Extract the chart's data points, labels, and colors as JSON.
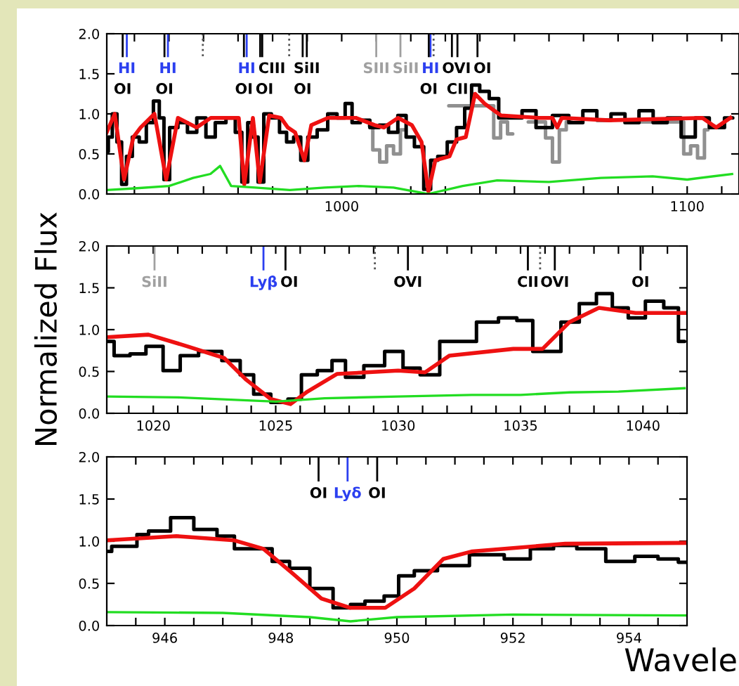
{
  "chart_data": [
    {
      "type": "line",
      "xlim": [
        932,
        1115
      ],
      "ylim": [
        0,
        2
      ],
      "xticks": [
        {
          "value": 940,
          "label": null
        },
        {
          "value": 950,
          "label": null
        },
        {
          "value": 960,
          "label": null
        },
        {
          "value": 970,
          "label": null
        },
        {
          "value": 980,
          "label": null
        },
        {
          "value": 990,
          "label": null
        },
        1000,
        {
          "value": 1010,
          "label": null
        },
        {
          "value": 1020,
          "label": null
        },
        {
          "value": 1030,
          "label": null
        },
        {
          "value": 1040,
          "label": null
        },
        {
          "value": 1050,
          "label": null
        },
        {
          "value": 1060,
          "label": null
        },
        {
          "value": 1070,
          "label": null
        },
        {
          "value": 1080,
          "label": null
        },
        {
          "value": 1090,
          "label": null
        },
        1100,
        {
          "value": 1110,
          "label": null
        }
      ],
      "yticks": [
        {
          "value": 0,
          "label": "0.0"
        },
        {
          "value": 0.5,
          "label": "0.5"
        },
        {
          "value": 1,
          "label": "1.0"
        },
        {
          "value": 1.5,
          "label": "1.5"
        },
        {
          "value": 2,
          "label": "2.0"
        }
      ],
      "grid": false,
      "series": [
        {
          "type": "step",
          "color": "#909090",
          "x": [
            1008,
            1010,
            1012,
            1014,
            1016,
            1018,
            1019,
            1043,
            1045,
            1047,
            1049,
            1050,
            1058,
            1060,
            1062,
            1064,
            1066,
            1067,
            1098,
            1100,
            1102,
            1104,
            1106
          ],
          "values": [
            0.85,
            0.55,
            0.4,
            0.6,
            0.5,
            0.8,
            null,
            1.1,
            0.7,
            0.9,
            0.75,
            null,
            0.9,
            0.7,
            0.4,
            0.8,
            0.9,
            null,
            0.9,
            0.5,
            0.6,
            0.45,
            0.8
          ]
        },
        {
          "type": "step",
          "color": "#000000",
          "x": [
            932,
            932.9,
            934.3,
            935.6,
            937,
            938.4,
            940.4,
            942.4,
            944.5,
            946.5,
            947.9,
            949.2,
            951.2,
            954,
            956.7,
            959.4,
            962,
            964.8,
            968.2,
            970.2,
            972,
            973.6,
            975,
            976.6,
            978.3,
            981,
            983,
            985.1,
            987.1,
            989.2,
            991.2,
            994.6,
            997.3,
            1000,
            1002,
            1004,
            1006.8,
            1009.5,
            1012.2,
            1014.9,
            1017.6,
            1019.7,
            1022.4,
            1025.1,
            1026.4,
            1029.2,
            1031.9,
            1034.6,
            1036.6,
            1038.6,
            1041.3,
            1044.1,
            1046.8,
            1050.2,
            1054.2,
            1058.3,
            1063.7,
            1067.8,
            1071.8,
            1075.9,
            1080,
            1084,
            1088.1,
            1092.2,
            1096.2,
            1100.3,
            1104.4,
            1108.4,
            1113.2
          ],
          "values": [
            0.53,
            0.71,
            1.0,
            0.65,
            0.12,
            0.47,
            0.71,
            0.65,
            0.89,
            1.16,
            0.95,
            0.18,
            0.83,
            0.89,
            0.77,
            0.95,
            0.71,
            0.89,
            0.95,
            0.77,
            0.15,
            0.89,
            0.71,
            0.15,
            1.0,
            0.95,
            0.77,
            0.65,
            0.71,
            0.42,
            0.71,
            0.8,
            1.0,
            0.95,
            1.13,
            0.89,
            0.92,
            0.83,
            0.86,
            0.77,
            0.98,
            0.71,
            0.59,
            0.06,
            0.42,
            0.47,
            0.65,
            0.83,
            1.07,
            1.36,
            1.28,
            1.19,
            0.95,
            0.95,
            1.04,
            0.83,
            0.98,
            0.89,
            1.04,
            0.92,
            1.0,
            0.89,
            1.04,
            0.89,
            0.95,
            0.71,
            0.95,
            0.83,
            0.95
          ]
        },
        {
          "type": "line",
          "color": "#ee1111",
          "x": [
            932,
            934.3,
            937,
            939.7,
            941.8,
            945.8,
            949.2,
            952.6,
            958,
            962.1,
            970.2,
            971.8,
            974.3,
            976.3,
            979,
            982.4,
            984.4,
            986.5,
            989.2,
            991.2,
            996,
            1004.1,
            1009.5,
            1012.2,
            1016.3,
            1020.3,
            1023.1,
            1025.1,
            1027.1,
            1031.2,
            1033.2,
            1035.9,
            1038.6,
            1041.3,
            1046.1,
            1056.9,
            1061,
            1062.4,
            1063.7,
            1077.3,
            1104.4,
            1108.4,
            1112.5
          ],
          "values": [
            0.77,
            1.0,
            0.18,
            0.71,
            0.83,
            1.0,
            0.18,
            0.95,
            0.83,
            0.95,
            0.95,
            0.12,
            0.95,
            0.15,
            0.98,
            0.95,
            0.83,
            0.77,
            0.42,
            0.86,
            0.95,
            0.95,
            0.86,
            0.83,
            0.95,
            0.86,
            0.65,
            0.03,
            0.42,
            0.47,
            0.68,
            0.71,
            1.25,
            1.13,
            0.98,
            0.95,
            0.95,
            0.83,
            0.95,
            0.92,
            0.95,
            0.83,
            0.95
          ]
        },
        {
          "type": "line",
          "color": "#22dd22",
          "x": [
            932,
            940,
            950,
            957,
            962,
            964.8,
            968,
            975,
            985,
            995,
            1005,
            1015,
            1025,
            1035,
            1045,
            1060,
            1075,
            1090,
            1100,
            1113
          ],
          "values": [
            0.05,
            0.07,
            0.1,
            0.2,
            0.25,
            0.35,
            0.1,
            0.08,
            0.05,
            0.08,
            0.1,
            0.08,
            0.0,
            0.1,
            0.17,
            0.15,
            0.2,
            0.22,
            0.18,
            0.25
          ]
        }
      ],
      "ref_lines": [
        {
          "axis": "x",
          "value": 937.8,
          "label": "HI",
          "color": "#2b3ff0"
        },
        {
          "axis": "x",
          "value": 936.6,
          "label": "OI",
          "color": "#000000"
        },
        {
          "axis": "x",
          "value": 949.7,
          "label": "HI",
          "color": "#2b3ff0"
        },
        {
          "axis": "x",
          "value": 948.7,
          "label": "OI",
          "color": "#000000"
        },
        {
          "axis": "x",
          "value": 959.8,
          "color": "#555555",
          "line_style": "dotted"
        },
        {
          "axis": "x",
          "value": 972.5,
          "label": "HI",
          "color": "#2b3ff0"
        },
        {
          "axis": "x",
          "value": 971.7,
          "label": "OI",
          "color": "#000000"
        },
        {
          "axis": "x",
          "value": 977.0,
          "label": "CIII",
          "color": "#000000"
        },
        {
          "axis": "x",
          "value": 976.4,
          "label": "OI",
          "color": "#000000"
        },
        {
          "axis": "x",
          "value": 984.8,
          "color": "#555555",
          "line_style": "dotted"
        },
        {
          "axis": "x",
          "value": 989.9,
          "label": "SiII",
          "color": "#000000"
        },
        {
          "axis": "x",
          "value": 988.7,
          "label": "OI",
          "color": "#000000"
        },
        {
          "axis": "x",
          "value": 1010,
          "label": "SIII",
          "color": "#a0a0a0"
        },
        {
          "axis": "x",
          "value": 1017,
          "label": "SiII",
          "color": "#a0a0a0"
        },
        {
          "axis": "x",
          "value": 1025.7,
          "label": "HI",
          "color": "#2b3ff0"
        },
        {
          "axis": "x",
          "value": 1025.2,
          "label": "OI",
          "color": "#000000"
        },
        {
          "axis": "x",
          "value": 1026.6,
          "color": "#555555",
          "line_style": "dotted"
        },
        {
          "axis": "x",
          "value": 1031.9,
          "label": "OVI",
          "color": "#000000"
        },
        {
          "axis": "x",
          "value": 1033.5,
          "label": "CII",
          "color": "#000000"
        },
        {
          "axis": "x",
          "value": 1039.3,
          "label": "OI",
          "color": "#000000"
        }
      ]
    },
    {
      "type": "line",
      "xlim": [
        1018.1,
        1041.8
      ],
      "ylim": [
        0,
        2
      ],
      "ylabel": "Normalized Flux",
      "xticks": [
        {
          "value": 1019,
          "label": null
        },
        1020,
        {
          "value": 1021,
          "label": null
        },
        {
          "value": 1022,
          "label": null
        },
        {
          "value": 1023,
          "label": null
        },
        {
          "value": 1024,
          "label": null
        },
        1025,
        {
          "value": 1026,
          "label": null
        },
        {
          "value": 1027,
          "label": null
        },
        {
          "value": 1028,
          "label": null
        },
        {
          "value": 1029,
          "label": null
        },
        1030,
        {
          "value": 1031,
          "label": null
        },
        {
          "value": 1032,
          "label": null
        },
        {
          "value": 1033,
          "label": null
        },
        {
          "value": 1034,
          "label": null
        },
        1035,
        {
          "value": 1036,
          "label": null
        },
        {
          "value": 1037,
          "label": null
        },
        {
          "value": 1038,
          "label": null
        },
        {
          "value": 1039,
          "label": null
        },
        1040,
        {
          "value": 1041,
          "label": null
        }
      ],
      "yticks": [
        {
          "value": 0,
          "label": "0.0"
        },
        {
          "value": 0.5,
          "label": "0.5"
        },
        {
          "value": 1,
          "label": "1.0"
        },
        {
          "value": 1.5,
          "label": "1.5"
        },
        {
          "value": 2,
          "label": "2.0"
        }
      ],
      "grid": false,
      "series": [
        {
          "type": "step",
          "color": "#000000",
          "x": [
            1018.1,
            1018.7,
            1019.4,
            1020,
            1020.8,
            1021.4,
            1022.3,
            1023.3,
            1023.8,
            1024.4,
            1025.2,
            1025.8,
            1026.3,
            1027.1,
            1027.5,
            1028.2,
            1029,
            1029.9,
            1030.5,
            1031.3,
            1032.1,
            1032.8,
            1033.6,
            1034.6,
            1035.1,
            1035.9,
            1036.3,
            1037,
            1037.8,
            1038.4,
            1039.1,
            1039.7,
            1040.5,
            1041.2,
            1041.7
          ],
          "values": [
            0.86,
            0.69,
            0.71,
            0.8,
            0.51,
            0.69,
            0.74,
            0.63,
            0.46,
            0.23,
            0.13,
            0.17,
            0.46,
            0.51,
            0.63,
            0.43,
            0.57,
            0.74,
            0.54,
            0.46,
            0.86,
            0.86,
            1.09,
            1.14,
            1.11,
            0.74,
            0.74,
            1.09,
            1.31,
            1.43,
            1.26,
            1.14,
            1.34,
            1.26,
            0.86
          ]
        },
        {
          "type": "line",
          "color": "#ee1111",
          "x": [
            1018.1,
            1019.8,
            1021.4,
            1022.9,
            1023.8,
            1024.8,
            1025.6,
            1026.3,
            1027.5,
            1030,
            1031.1,
            1032.1,
            1034.7,
            1035.9,
            1037,
            1038.2,
            1039.7,
            1041.7
          ],
          "values": [
            0.91,
            0.94,
            0.8,
            0.66,
            0.4,
            0.17,
            0.11,
            0.26,
            0.47,
            0.51,
            0.49,
            0.69,
            0.77,
            0.77,
            1.09,
            1.26,
            1.2,
            1.2
          ]
        },
        {
          "type": "line",
          "color": "#22dd22",
          "x": [
            1018.1,
            1021,
            1025,
            1027,
            1030,
            1033,
            1035,
            1037,
            1039,
            1041.7
          ],
          "values": [
            0.2,
            0.19,
            0.14,
            0.18,
            0.2,
            0.22,
            0.22,
            0.25,
            0.26,
            0.3
          ]
        }
      ],
      "ref_lines": [
        {
          "axis": "x",
          "value": 1020.05,
          "label": "SiII",
          "color": "#a0a0a0"
        },
        {
          "axis": "x",
          "value": 1024.5,
          "label": "Lyβ",
          "color": "#2b3ff0"
        },
        {
          "axis": "x",
          "value": 1025.4,
          "label": "OI",
          "color": "#000000"
        },
        {
          "axis": "x",
          "value": 1029.05,
          "color": "#555555",
          "line_style": "dotted"
        },
        {
          "axis": "x",
          "value": 1030.4,
          "label": "OVI",
          "color": "#000000"
        },
        {
          "axis": "x",
          "value": 1035.3,
          "label": "CII",
          "color": "#000000"
        },
        {
          "axis": "x",
          "value": 1035.8,
          "color": "#555555",
          "line_style": "dotted"
        },
        {
          "axis": "x",
          "value": 1036.4,
          "label": "OVI",
          "color": "#000000"
        },
        {
          "axis": "x",
          "value": 1039.9,
          "label": "OI",
          "color": "#000000"
        }
      ]
    },
    {
      "type": "line",
      "xlim": [
        945,
        955
      ],
      "ylim": [
        0,
        2
      ],
      "xlabel": "Wavele",
      "xticks": [
        {
          "value": 945.5,
          "label": null
        },
        946,
        {
          "value": 946.5,
          "label": null
        },
        {
          "value": 947,
          "label": null
        },
        {
          "value": 947.5,
          "label": null
        },
        948,
        {
          "value": 948.5,
          "label": null
        },
        {
          "value": 949,
          "label": null
        },
        {
          "value": 949.5,
          "label": null
        },
        950,
        {
          "value": 950.5,
          "label": null
        },
        {
          "value": 951,
          "label": null
        },
        {
          "value": 951.5,
          "label": null
        },
        952,
        {
          "value": 952.5,
          "label": null
        },
        {
          "value": 953,
          "label": null
        },
        {
          "value": 953.5,
          "label": null
        },
        954,
        {
          "value": 954.5,
          "label": null
        }
      ],
      "yticks": [
        {
          "value": 0,
          "label": "0.0"
        },
        {
          "value": 0.5,
          "label": "0.5"
        },
        {
          "value": 1,
          "label": "1.0"
        },
        {
          "value": 1.5,
          "label": "1.5"
        },
        {
          "value": 2,
          "label": "2.0"
        }
      ],
      "grid": false,
      "series": [
        {
          "type": "step",
          "color": "#000000",
          "x": [
            945,
            945.17,
            945.5,
            945.54,
            945.9,
            946.3,
            946.7,
            947.1,
            947.3,
            947.7,
            948,
            948.3,
            948.7,
            949.1,
            949.3,
            949.6,
            949.96,
            950.1,
            950.5,
            950.9,
            951.6,
            952.1,
            952.5,
            952.9,
            953.3,
            953.9,
            954.3,
            954.7,
            955
          ],
          "values": [
            0.88,
            0.94,
            0.94,
            1.08,
            1.12,
            1.28,
            1.14,
            1.06,
            0.91,
            0.91,
            0.76,
            0.68,
            0.44,
            0.21,
            0.25,
            0.29,
            0.35,
            0.59,
            0.65,
            0.71,
            0.84,
            0.79,
            0.91,
            0.95,
            0.91,
            0.76,
            0.82,
            0.79,
            0.75
          ]
        },
        {
          "type": "line",
          "color": "#ee1111",
          "x": [
            945,
            946.2,
            947.2,
            947.7,
            948.2,
            948.7,
            949.2,
            949.8,
            950.3,
            950.8,
            951.3,
            952.9,
            955
          ],
          "values": [
            1.01,
            1.06,
            1.01,
            0.91,
            0.62,
            0.32,
            0.21,
            0.21,
            0.44,
            0.79,
            0.88,
            0.97,
            0.98
          ]
        },
        {
          "type": "line",
          "color": "#22dd22",
          "x": [
            945,
            947,
            948.5,
            949.2,
            950,
            952,
            955
          ],
          "values": [
            0.16,
            0.15,
            0.1,
            0.05,
            0.1,
            0.13,
            0.12
          ]
        }
      ],
      "ref_lines": [
        {
          "axis": "x",
          "value": 948.65,
          "label": "OI",
          "color": "#000000"
        },
        {
          "axis": "x",
          "value": 949.15,
          "label": "Lyδ",
          "color": "#2b3ff0"
        },
        {
          "axis": "x",
          "value": 949.66,
          "label": "OI",
          "color": "#000000"
        }
      ]
    }
  ]
}
